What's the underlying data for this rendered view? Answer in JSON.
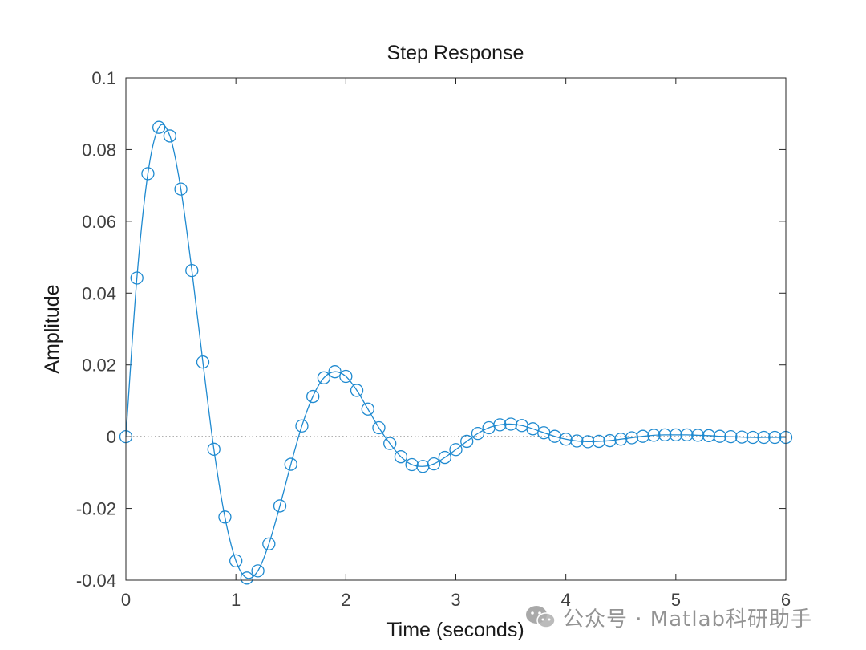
{
  "chart_data": {
    "type": "line",
    "title": "Step Response",
    "xlabel": "Time (seconds)",
    "ylabel": "Amplitude",
    "xlim": [
      0,
      6
    ],
    "ylim": [
      -0.04,
      0.1
    ],
    "xticks": [
      0,
      1,
      2,
      3,
      4,
      5,
      6
    ],
    "xtick_labels": [
      "0",
      "1",
      "2",
      "3",
      "4",
      "5",
      "6"
    ],
    "yticks": [
      -0.04,
      -0.02,
      0,
      0.02,
      0.04,
      0.06,
      0.08,
      0.1
    ],
    "ytick_labels": [
      "-0.04",
      "-0.02",
      "0",
      "0.02",
      "0.04",
      "0.06",
      "0.08",
      "0.1"
    ],
    "grid": false,
    "zero_line": "dotted",
    "series": [
      {
        "color": "#1f8ad0",
        "marker": "circle",
        "x": [
          0.0,
          0.1,
          0.2,
          0.3,
          0.4,
          0.5,
          0.6,
          0.7,
          0.8,
          0.9,
          1.0,
          1.1,
          1.2,
          1.3,
          1.4,
          1.5,
          1.6,
          1.7,
          1.8,
          1.9,
          2.0,
          2.1,
          2.2,
          2.3,
          2.4,
          2.5,
          2.6,
          2.7,
          2.8,
          2.9,
          3.0,
          3.1,
          3.2,
          3.3,
          3.4,
          3.5,
          3.6,
          3.7,
          3.8,
          3.9,
          4.0,
          4.1,
          4.2,
          4.3,
          4.4,
          4.5,
          4.6,
          4.7,
          4.8,
          4.9,
          5.0,
          5.1,
          5.2,
          5.3,
          5.4,
          5.5,
          5.6,
          5.7,
          5.8,
          5.9,
          6.0
        ],
        "y": [
          0.0,
          0.0442,
          0.0733,
          0.0862,
          0.0838,
          0.069,
          0.0463,
          0.0208,
          -0.0035,
          -0.0224,
          -0.0346,
          -0.0394,
          -0.0374,
          -0.0299,
          -0.0193,
          -0.0077,
          0.003,
          0.0112,
          0.0164,
          0.0181,
          0.0168,
          0.0129,
          0.0077,
          0.0025,
          -0.0019,
          -0.0056,
          -0.0078,
          -0.0083,
          -0.0076,
          -0.0058,
          -0.0036,
          -0.0013,
          0.0009,
          0.0025,
          0.0033,
          0.0035,
          0.0031,
          0.0022,
          0.0011,
          0.0001,
          -0.0007,
          -0.0012,
          -0.0014,
          -0.0013,
          -0.0011,
          -0.0007,
          -0.0003,
          0.0001,
          0.0004,
          0.0005,
          0.0005,
          0.0005,
          0.0004,
          0.0003,
          0.0001,
          0.0,
          -0.0001,
          -0.0002,
          -0.0002,
          -0.0002,
          -0.0002
        ]
      }
    ]
  },
  "watermark": {
    "text": "公众号 · Matlab科研助手",
    "icon": "wechat-icon"
  }
}
